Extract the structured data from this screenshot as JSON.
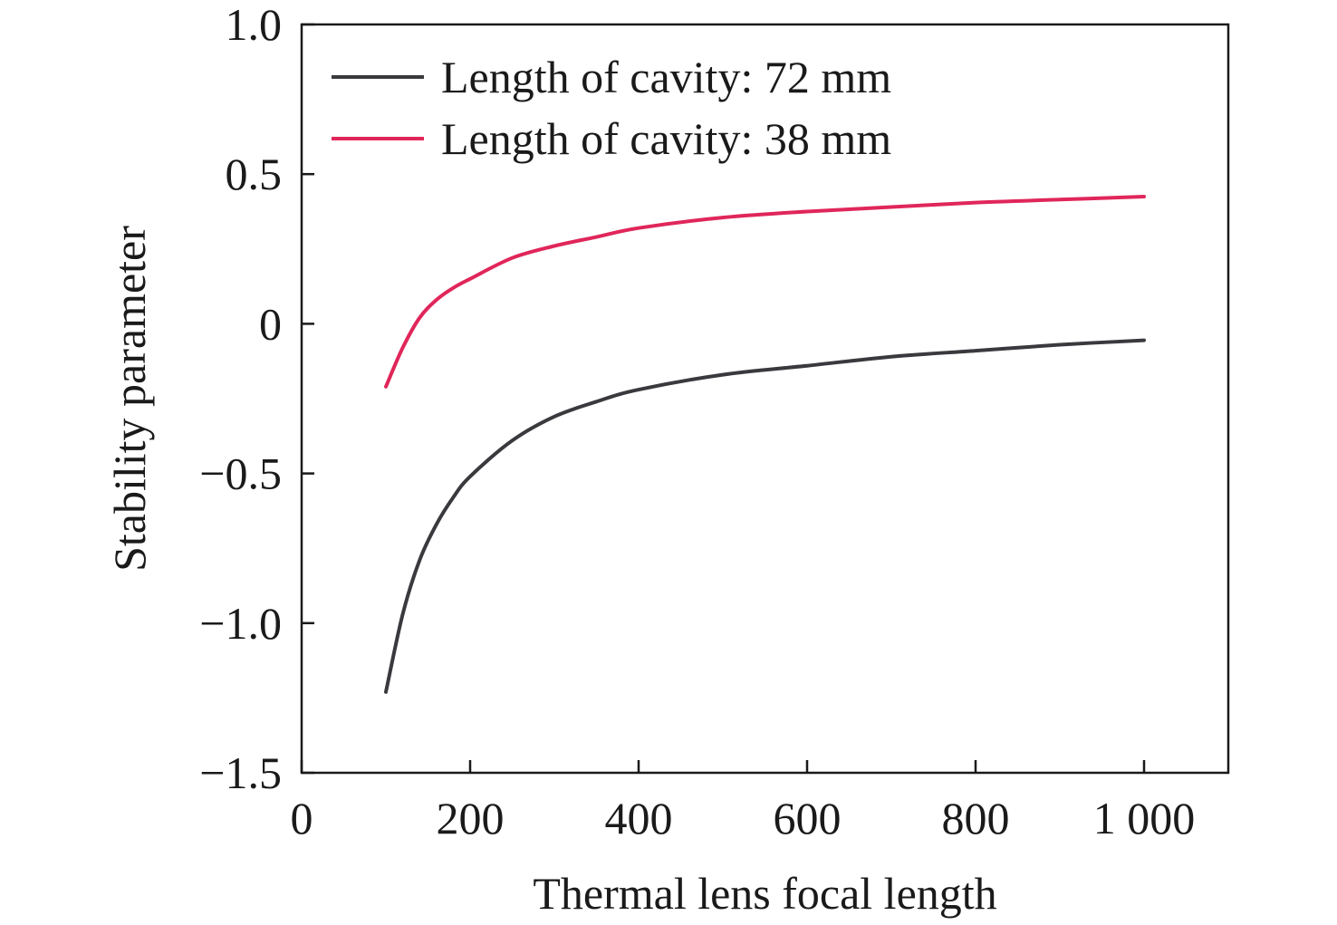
{
  "chart_data": {
    "type": "line",
    "title": "",
    "xlabel": "Thermal lens focal length",
    "ylabel": "Stability parameter",
    "xlim": [
      0,
      1100
    ],
    "ylim": [
      -1.5,
      1.0
    ],
    "x_ticks": [
      0,
      200,
      400,
      600,
      800,
      1000
    ],
    "x_tick_labels": [
      "0",
      "200",
      "400",
      "600",
      "800",
      "1 000"
    ],
    "y_ticks": [
      1.0,
      0.5,
      0,
      -0.5,
      -1.0,
      -1.5
    ],
    "y_tick_labels": [
      "1.0",
      "0.5",
      "0",
      "−0.5",
      "−1.0",
      "−1.5"
    ],
    "grid": false,
    "legend_position": "top-left",
    "series": [
      {
        "name": "Length of cavity: 72 mm",
        "color": "#3a3a3e",
        "x": [
          100,
          120,
          140,
          160,
          180,
          200,
          250,
          300,
          350,
          400,
          500,
          600,
          700,
          800,
          900,
          1000
        ],
        "y": [
          -1.23,
          -0.97,
          -0.79,
          -0.67,
          -0.58,
          -0.51,
          -0.39,
          -0.31,
          -0.26,
          -0.22,
          -0.17,
          -0.14,
          -0.11,
          -0.09,
          -0.07,
          -0.055
        ]
      },
      {
        "name": "Length of cavity: 38 mm",
        "color": "#e0265a",
        "x": [
          100,
          120,
          140,
          160,
          180,
          200,
          250,
          300,
          350,
          400,
          500,
          600,
          700,
          800,
          900,
          1000
        ],
        "y": [
          -0.21,
          -0.08,
          0.02,
          0.08,
          0.12,
          0.15,
          0.22,
          0.26,
          0.29,
          0.32,
          0.355,
          0.375,
          0.39,
          0.405,
          0.415,
          0.425
        ]
      }
    ]
  }
}
